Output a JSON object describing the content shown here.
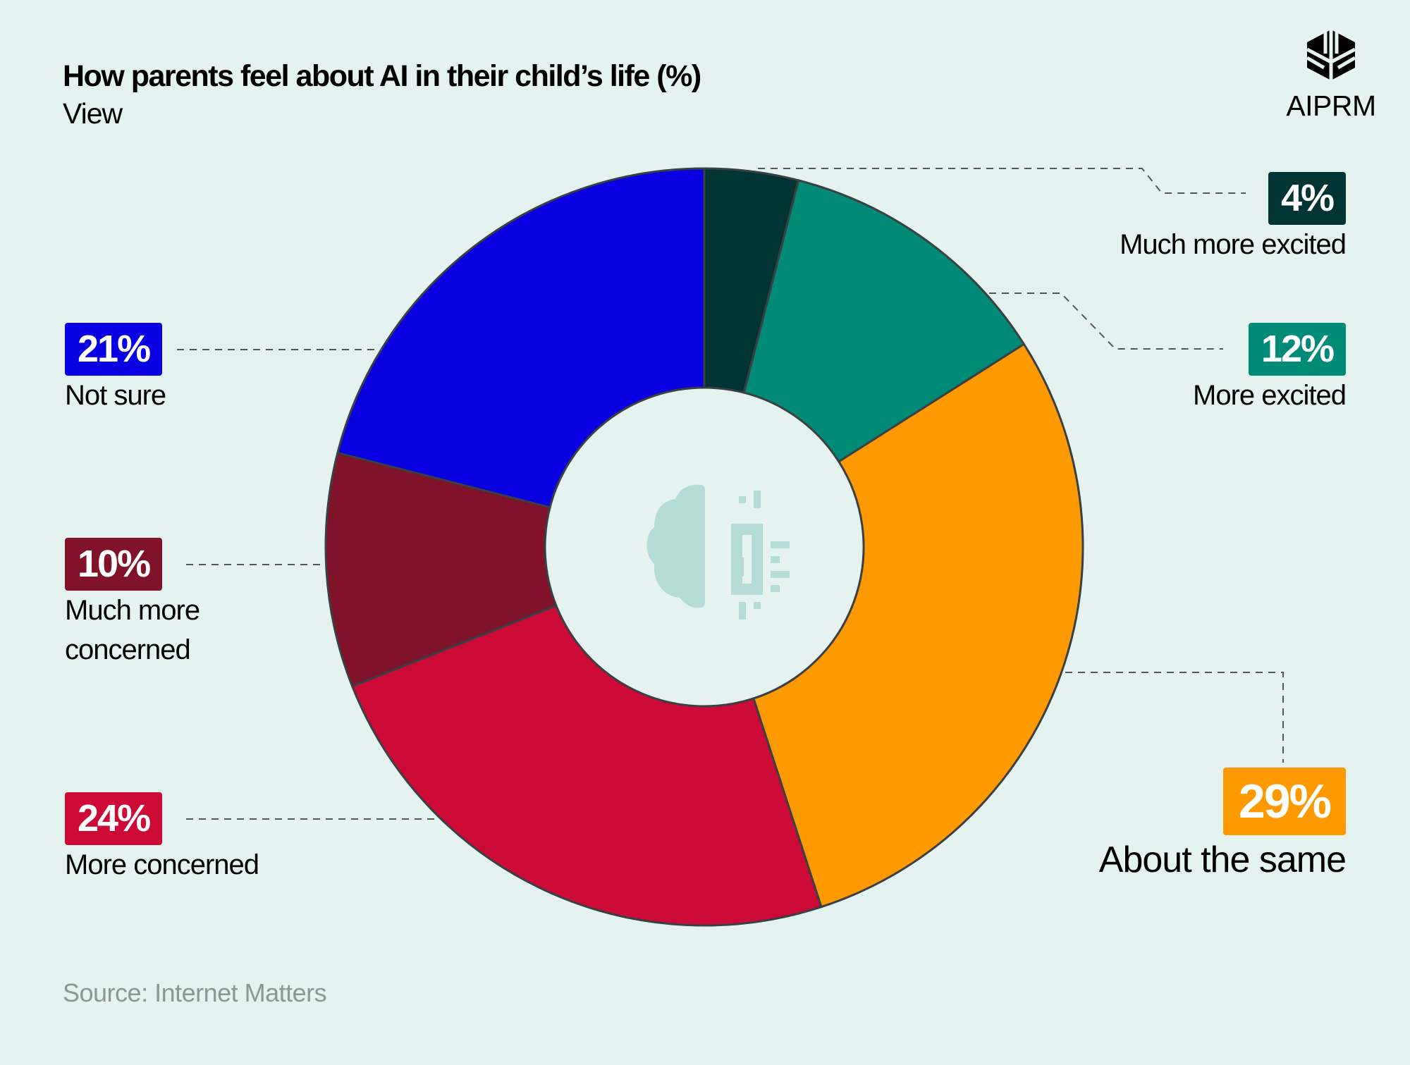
{
  "title": "How parents feel about AI in their child’s life (%)",
  "subtitle": "View",
  "source": "Source: Internet Matters",
  "logo": {
    "text": "AIPRM",
    "icon": "aiprm-cube-logo"
  },
  "center_icon": "brain-chip-icon",
  "chart_data": {
    "type": "pie",
    "donut": true,
    "title": "How parents feel about AI in their child’s life (%)",
    "subtitle": "View",
    "slices": [
      {
        "label": "Much more excited",
        "value": 4,
        "display": "4%",
        "color": "#003333"
      },
      {
        "label": "More excited",
        "value": 12,
        "display": "12%",
        "color": "#008a78"
      },
      {
        "label": "About the same",
        "value": 29,
        "display": "29%",
        "color": "#ff9900"
      },
      {
        "label": "More concerned",
        "value": 24,
        "display": "24%",
        "color": "#cc0a35"
      },
      {
        "label": "Much more concerned",
        "value": 10,
        "display": "10%",
        "color": "#801229"
      },
      {
        "label": "Not sure",
        "value": 21,
        "display": "21%",
        "color": "#0800e0"
      }
    ]
  }
}
